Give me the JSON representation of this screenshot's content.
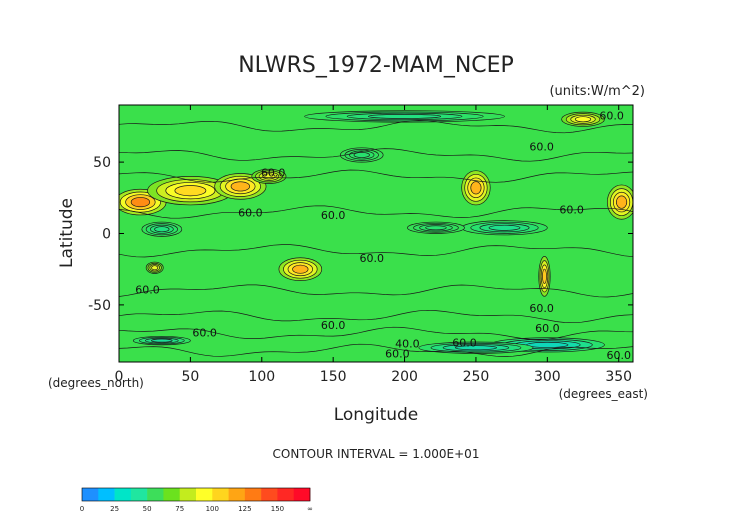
{
  "chart_data": {
    "type": "heatmap",
    "title": "NLWRS_1972-MAM_NCEP",
    "units_label": "(units:W/m^2)",
    "xlabel": "Longitude",
    "ylabel": "Latitude",
    "x_unit_label": "(degrees_east)",
    "y_unit_label": "(degrees_north)",
    "xlim": [
      0,
      360
    ],
    "ylim": [
      -90,
      90
    ],
    "x_ticks": [
      0,
      50,
      100,
      150,
      200,
      250,
      300,
      350
    ],
    "y_ticks": [
      -50,
      0,
      50
    ],
    "contour_interval_text": "CONTOUR INTERVAL = 1.000E+01",
    "contour_labels": [
      "60.0",
      "60.0",
      "60.0",
      "60.0",
      "60.0",
      "60.0",
      "60.0",
      "60.0",
      "60.0",
      "60.0",
      "60.0",
      "60.0",
      "40.0",
      "60.0",
      "60.0",
      "60.0"
    ],
    "background_value": 60,
    "features": [
      {
        "kind": "high",
        "lon": 15,
        "lat": 22,
        "rlon": 18,
        "rlat": 9,
        "value": 125
      },
      {
        "kind": "high",
        "lon": 50,
        "lat": 30,
        "rlon": 30,
        "rlat": 10,
        "value": 105
      },
      {
        "kind": "high",
        "lon": 85,
        "lat": 33,
        "rlon": 18,
        "rlat": 9,
        "value": 115
      },
      {
        "kind": "high",
        "lon": 105,
        "lat": 40,
        "rlon": 12,
        "rlat": 5,
        "value": 90
      },
      {
        "kind": "high",
        "lon": 127,
        "lat": -25,
        "rlon": 15,
        "rlat": 8,
        "value": 115
      },
      {
        "kind": "high",
        "lon": 250,
        "lat": 32,
        "rlon": 10,
        "rlat": 12,
        "value": 115
      },
      {
        "kind": "high",
        "lon": 298,
        "lat": -30,
        "rlon": 4,
        "rlat": 14,
        "value": 110
      },
      {
        "kind": "high",
        "lon": 352,
        "lat": 22,
        "rlon": 10,
        "rlat": 12,
        "value": 115
      },
      {
        "kind": "high",
        "lon": 325,
        "lat": 80,
        "rlon": 15,
        "rlat": 5,
        "value": 95
      },
      {
        "kind": "high",
        "lon": 25,
        "lat": -24,
        "rlon": 6,
        "rlat": 4,
        "value": 90
      },
      {
        "kind": "low",
        "lon": 270,
        "lat": 4,
        "rlon": 30,
        "rlat": 5,
        "value": 50
      },
      {
        "kind": "low",
        "lon": 222,
        "lat": 4,
        "rlon": 20,
        "rlat": 4,
        "value": 55
      },
      {
        "kind": "low",
        "lon": 30,
        "lat": 3,
        "rlon": 14,
        "rlat": 5,
        "value": 52
      },
      {
        "kind": "low",
        "lon": 200,
        "lat": 82,
        "rlon": 70,
        "rlat": 4,
        "value": 52
      },
      {
        "kind": "low",
        "lon": 300,
        "lat": -78,
        "rlon": 40,
        "rlat": 5,
        "value": 40
      },
      {
        "kind": "low",
        "lon": 250,
        "lat": -80,
        "rlon": 40,
        "rlat": 4,
        "value": 45
      },
      {
        "kind": "low",
        "lon": 30,
        "lat": -75,
        "rlon": 20,
        "rlat": 3,
        "value": 48
      },
      {
        "kind": "low",
        "lon": 170,
        "lat": 55,
        "rlon": 15,
        "rlat": 5,
        "value": 55
      }
    ],
    "colorbar": {
      "labels": [
        "0",
        "25",
        "50",
        "75",
        "100",
        "125",
        "150",
        "∞"
      ],
      "colors": [
        "#1e90ff",
        "#00bfff",
        "#00e5c8",
        "#20e6a0",
        "#3dde5a",
        "#6be21e",
        "#c3ec1e",
        "#ffff28",
        "#ffd51e",
        "#ffa514",
        "#ff7b14",
        "#ff4b1e",
        "#ff2824",
        "#ff0a28"
      ]
    },
    "grid": false,
    "legend": "bottom-left colorbar"
  }
}
